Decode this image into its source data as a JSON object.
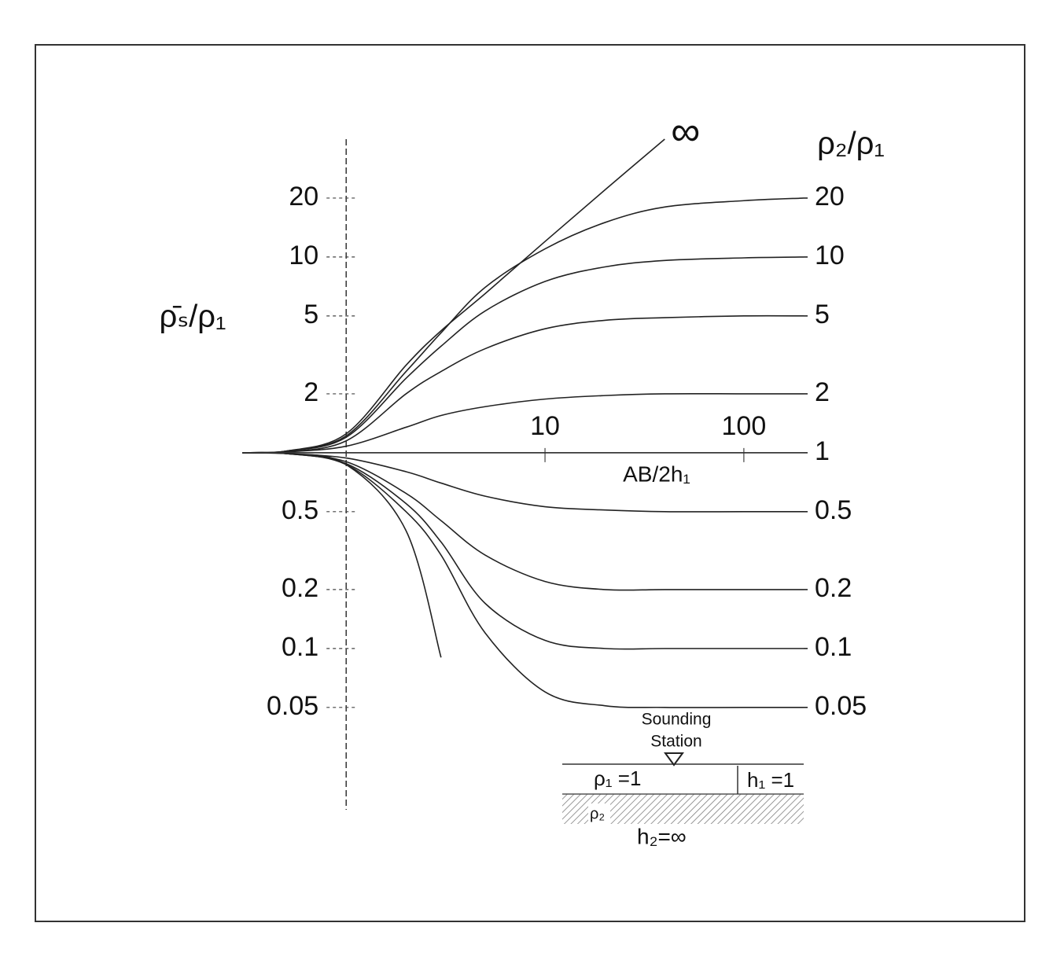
{
  "chart_data": {
    "type": "line",
    "y_label": "ρ̄ₛ/ρ₁",
    "x_label": "AB/2h₁",
    "legend_title": "ρ₂/ρ₁",
    "log_x": true,
    "log_y": true,
    "line_color": "#222222",
    "y_axis_at": 1,
    "xlim": [
      0.3,
      200
    ],
    "ylim": [
      0.015,
      40
    ],
    "xticks": [
      10,
      100
    ],
    "yticks": [
      0.05,
      0.1,
      0.2,
      0.5,
      2,
      5,
      10,
      20
    ],
    "x": [
      0.3,
      0.5,
      1,
      2,
      3,
      5,
      10,
      20,
      40,
      100,
      200
    ],
    "series": [
      {
        "name": "∞",
        "values": [
          1,
          1.02,
          1.25,
          2.8,
          4.2,
          6.5,
          12,
          22,
          40,
          null,
          null
        ]
      },
      {
        "name": "20",
        "values": [
          1,
          1.02,
          1.22,
          2.6,
          4.1,
          7,
          11,
          15,
          18,
          19.4,
          20
        ]
      },
      {
        "name": "10",
        "values": [
          1,
          1.02,
          1.2,
          2.4,
          3.5,
          5.3,
          7.5,
          8.9,
          9.6,
          9.9,
          10
        ]
      },
      {
        "name": "5",
        "values": [
          1,
          1.01,
          1.15,
          2,
          2.6,
          3.4,
          4.3,
          4.75,
          4.9,
          5,
          5
        ]
      },
      {
        "name": "2",
        "values": [
          1,
          1.01,
          1.08,
          1.35,
          1.55,
          1.72,
          1.88,
          1.96,
          2,
          2,
          2
        ]
      },
      {
        "name": "1",
        "values": [
          1,
          1,
          1,
          1,
          1,
          1,
          1,
          1,
          1,
          1,
          1
        ]
      },
      {
        "name": "0.5",
        "values": [
          1,
          0.99,
          0.94,
          0.8,
          0.7,
          0.6,
          0.53,
          0.51,
          0.5,
          0.5,
          0.5
        ]
      },
      {
        "name": "0.2",
        "values": [
          1,
          0.99,
          0.9,
          0.62,
          0.45,
          0.3,
          0.22,
          0.2,
          0.2,
          0.2,
          0.2
        ]
      },
      {
        "name": "0.1",
        "values": [
          1,
          0.99,
          0.88,
          0.55,
          0.35,
          0.17,
          0.11,
          0.1,
          0.1,
          0.1,
          0.1
        ]
      },
      {
        "name": "0.05",
        "values": [
          1,
          0.99,
          0.87,
          0.5,
          0.3,
          0.12,
          0.06,
          0.051,
          0.05,
          0.05,
          0.05
        ]
      },
      {
        "values": [
          1,
          0.99,
          0.87,
          0.4,
          0.09,
          null,
          null,
          null,
          null,
          null,
          null
        ]
      }
    ]
  },
  "inset": {
    "station": "Sounding",
    "station2": "Station",
    "rho1": "ρ₁ =1",
    "h1": "h₁ =1",
    "rho2": "ρ₂",
    "h2": "h₂=∞"
  }
}
